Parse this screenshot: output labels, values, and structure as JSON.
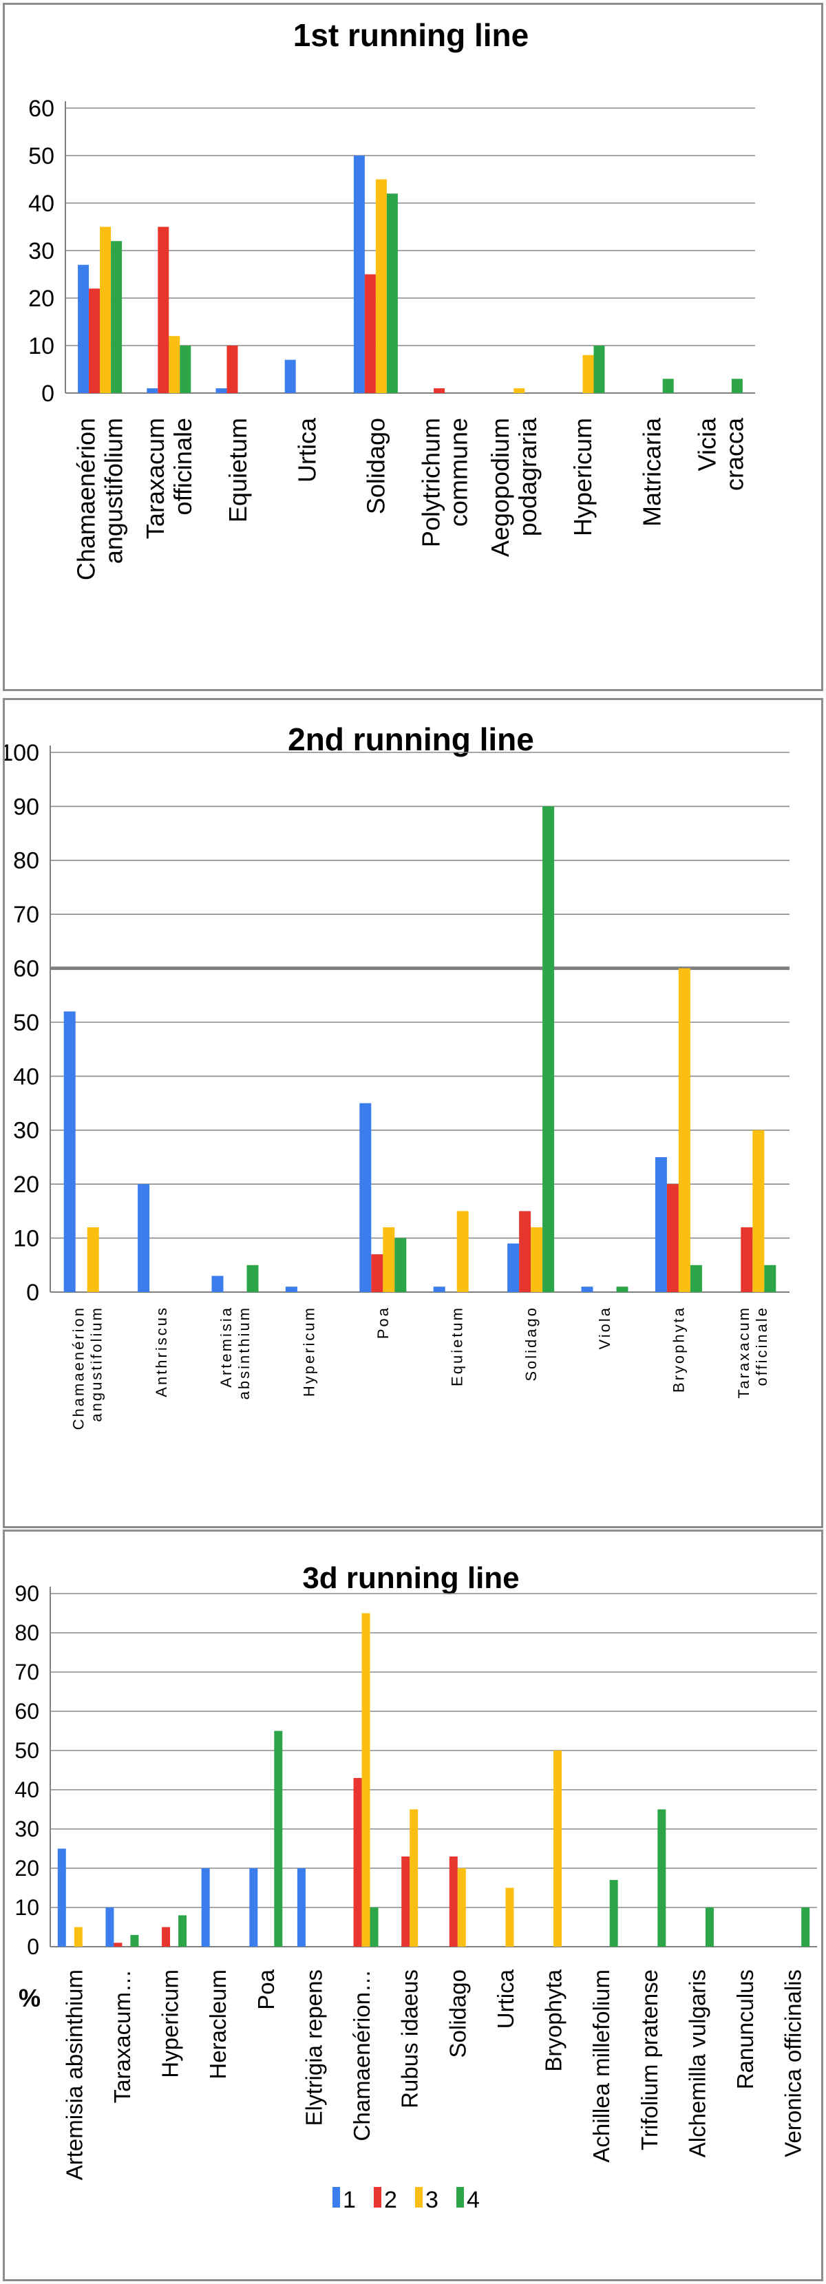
{
  "colors": {
    "1": "#3b7ded",
    "2": "#e8352e",
    "3": "#fbbf12",
    "4": "#2ca648"
  },
  "chart_data": [
    {
      "type": "bar",
      "title": "1st running line",
      "ylim": [
        0,
        60
      ],
      "yticks": [
        "0",
        "10",
        "20",
        "30",
        "40",
        "50",
        "60"
      ],
      "grid": true,
      "categories": [
        "Chamaenérion angustifolium",
        "Taraxacum officinale",
        "Equietum",
        "Urtica",
        "Solidago",
        "Polytrichum commune",
        "Aegopodium podagraria",
        "Hypericum",
        "Matricaria",
        "Vicia cracca"
      ],
      "series": [
        {
          "values": [
            27,
            1,
            1,
            7,
            50,
            0,
            0,
            0,
            0,
            0
          ]
        },
        {
          "values": [
            22,
            35,
            10,
            0,
            25,
            1,
            0,
            0,
            0,
            0
          ]
        },
        {
          "values": [
            35,
            12,
            0,
            0,
            45,
            0,
            1,
            8,
            0,
            0
          ]
        },
        {
          "values": [
            32,
            10,
            0,
            0,
            42,
            0,
            0,
            10,
            3,
            3
          ]
        }
      ]
    },
    {
      "type": "bar",
      "title": "2nd running line",
      "ylim": [
        0,
        100
      ],
      "yticks": [
        "0",
        "10",
        "20",
        "30",
        "40",
        "50",
        "60",
        "70",
        "80",
        "90",
        "100"
      ],
      "grid": true,
      "categories": [
        "Chamaenérion angustifolium",
        "Anthriscus",
        "Artemisia absinthium",
        "Hypericum",
        "Poa",
        "Equietum",
        "Solidago",
        "Viola",
        "Bryophyta",
        "Taraxacum officinale"
      ],
      "series": [
        {
          "values": [
            52,
            20,
            3,
            1,
            35,
            1,
            9,
            1,
            25,
            0
          ]
        },
        {
          "values": [
            0,
            0,
            0,
            0,
            7,
            0,
            15,
            0,
            20,
            12
          ]
        },
        {
          "values": [
            12,
            0,
            0,
            0,
            12,
            15,
            12,
            0,
            60,
            30
          ]
        },
        {
          "values": [
            0,
            0,
            5,
            0,
            10,
            0,
            90,
            1,
            5,
            5
          ]
        }
      ]
    },
    {
      "type": "bar",
      "title": "3d running line",
      "ylabel": "%",
      "ylim": [
        0,
        90
      ],
      "yticks": [
        "0",
        "10",
        "20",
        "30",
        "40",
        "50",
        "60",
        "70",
        "80",
        "90"
      ],
      "grid": true,
      "legend": "bottom",
      "categories": [
        "Artemisia absinthium",
        "Taraxacum…",
        "Hypericum",
        "Heracleum",
        "Poa",
        "Elytrigia repens",
        "Chamaenérion…",
        "Rubus idaeus",
        "Solidago",
        "Urtica",
        "Bryophyta",
        "Achillea millefolium",
        "Trifolium pratense",
        "Alchemilla vulgaris",
        "Ranunculus",
        "Veronica officinalis"
      ],
      "legend_entries": [
        "1",
        "2",
        "3",
        "4"
      ],
      "series": [
        {
          "name": "1",
          "values": [
            25,
            10,
            0,
            20,
            20,
            20,
            0,
            0,
            0,
            0,
            0,
            0,
            0,
            0,
            0,
            0
          ]
        },
        {
          "name": "2",
          "values": [
            0,
            1,
            5,
            0,
            0,
            0,
            43,
            23,
            23,
            0,
            0,
            0,
            0,
            0,
            0,
            0
          ]
        },
        {
          "name": "3",
          "values": [
            5,
            0,
            0,
            0,
            0,
            0,
            85,
            35,
            20,
            15,
            50,
            0,
            0,
            0,
            0,
            0
          ]
        },
        {
          "name": "4",
          "values": [
            0,
            3,
            8,
            0,
            55,
            0,
            10,
            0,
            0,
            0,
            0,
            17,
            35,
            10,
            0,
            10
          ]
        }
      ]
    }
  ]
}
